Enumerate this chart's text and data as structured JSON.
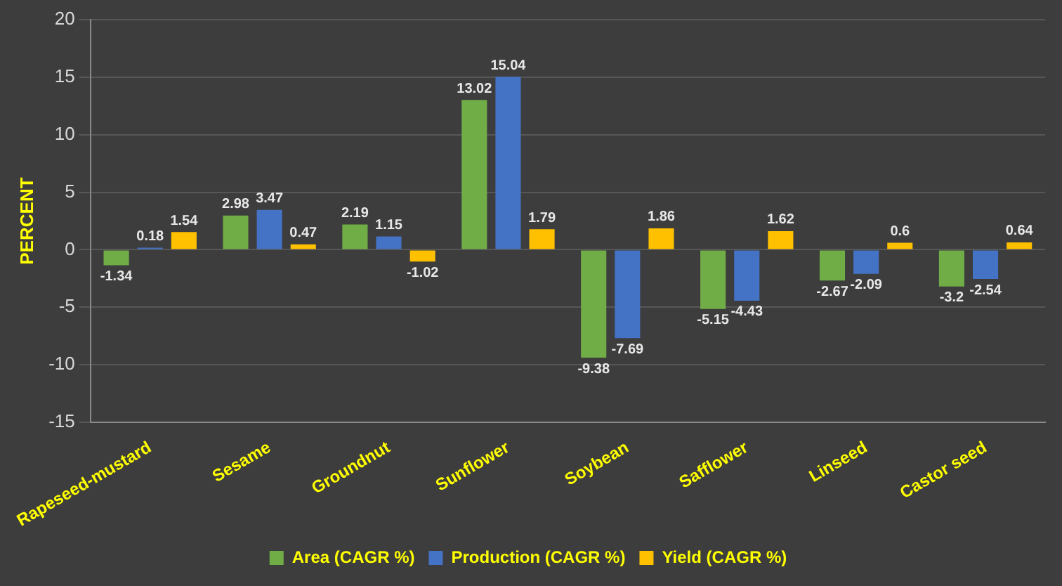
{
  "chart_data": {
    "type": "bar",
    "ylabel": "PERCENT",
    "categories": [
      "Rapeseed-mustard",
      "Sesame",
      "Groundnut",
      "Sunflower",
      "Soybean",
      "Safflower",
      "Linseed",
      "Castor seed"
    ],
    "series": [
      {
        "name": "Area (CAGR %)",
        "color": "#70ad47",
        "values": [
          -1.34,
          2.98,
          2.19,
          13.02,
          -9.38,
          -5.15,
          -2.67,
          -3.2
        ]
      },
      {
        "name": "Production (CAGR %)",
        "color": "#4472c4",
        "values": [
          0.18,
          3.47,
          1.15,
          15.04,
          -7.69,
          -4.43,
          -2.09,
          -2.54
        ]
      },
      {
        "name": "Yield (CAGR %)",
        "color": "#ffc000",
        "values": [
          1.54,
          0.47,
          -1.02,
          1.79,
          1.86,
          1.62,
          0.6,
          0.64
        ]
      }
    ],
    "ylim": [
      -15,
      20
    ],
    "yticks": [
      -15,
      -10,
      -5,
      0,
      5,
      10,
      15,
      20
    ],
    "grid": "y",
    "legend": "bottom",
    "data_labels": true
  }
}
